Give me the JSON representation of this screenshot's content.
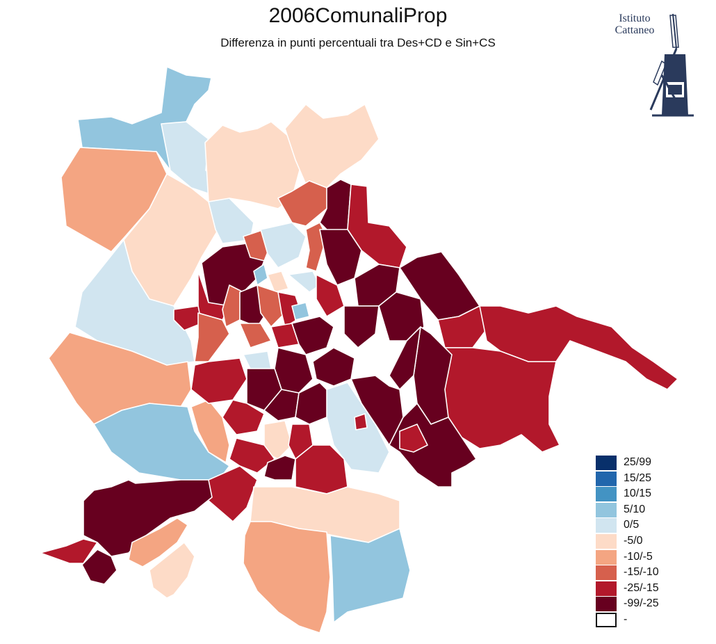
{
  "title": "2006ComunaliProp",
  "subtitle": "Differenza in punti percentuali tra Des+CD e Sin+CS",
  "logo": {
    "line1": "Istituto",
    "line2": "Cattaneo",
    "color": "#2a3a5c"
  },
  "legend": [
    {
      "label": "25/99",
      "color": "#08306b"
    },
    {
      "label": "15/25",
      "color": "#2166ac"
    },
    {
      "label": "10/15",
      "color": "#4393c3"
    },
    {
      "label": "5/10",
      "color": "#92c5de"
    },
    {
      "label": "0/5",
      "color": "#d1e5f0"
    },
    {
      "label": "-5/0",
      "color": "#fddbc7"
    },
    {
      "label": "-10/-5",
      "color": "#f4a582"
    },
    {
      "label": "-15/-10",
      "color": "#d6604d"
    },
    {
      "label": "-25/-15",
      "color": "#b2182b"
    },
    {
      "label": "-99/-25",
      "color": "#67001f"
    },
    {
      "label": "-",
      "color": "#ffffff"
    }
  ]
}
